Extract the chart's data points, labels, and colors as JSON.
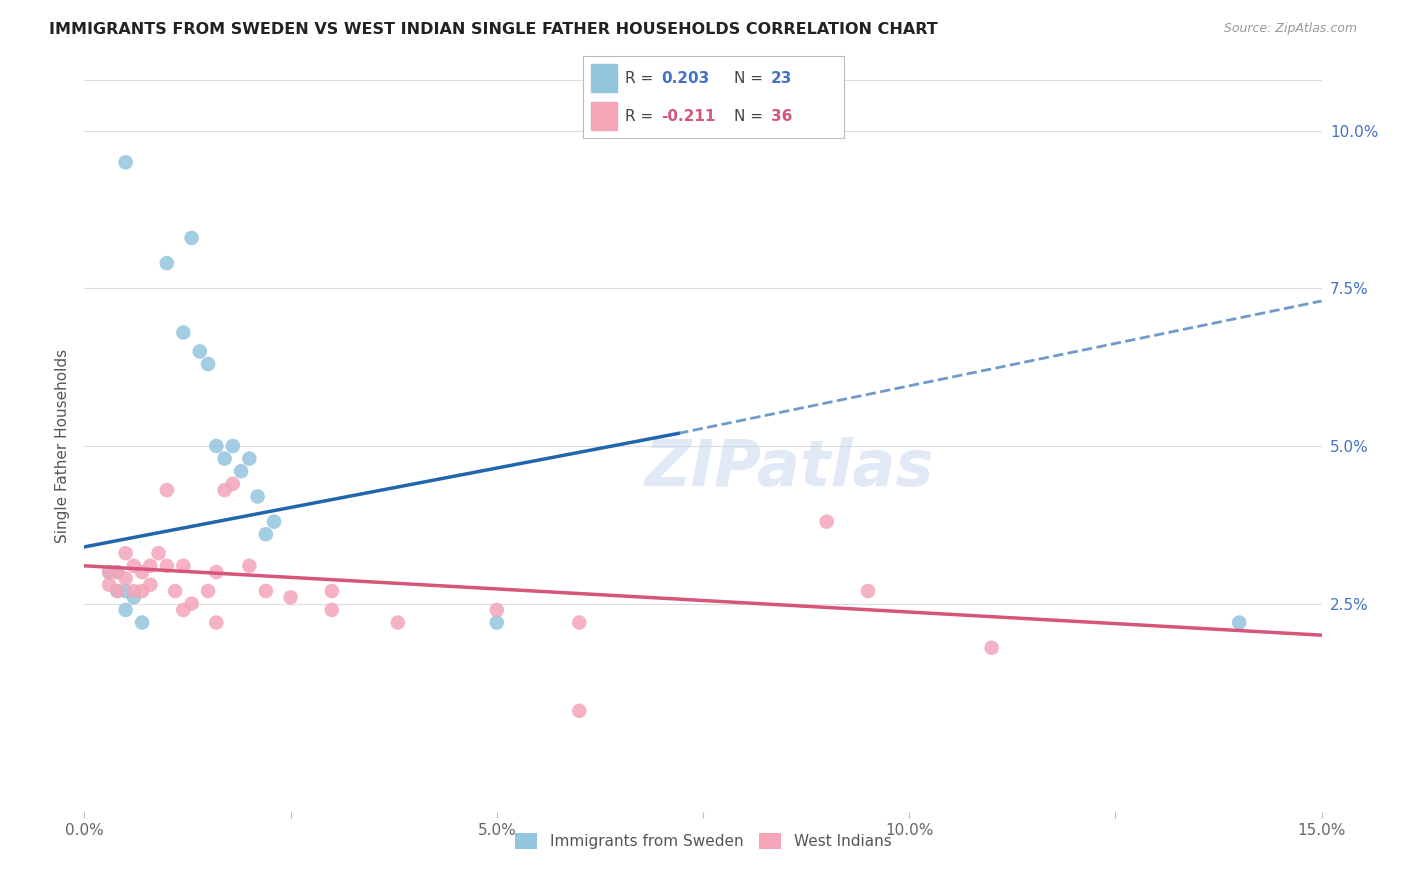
{
  "title": "IMMIGRANTS FROM SWEDEN VS WEST INDIAN SINGLE FATHER HOUSEHOLDS CORRELATION CHART",
  "source": "Source: ZipAtlas.com",
  "ylabel": "Single Father Households",
  "xlim": [
    0.0,
    0.15
  ],
  "ylim": [
    -0.008,
    0.108
  ],
  "blue_color": "#92c5de",
  "pink_color": "#f4a5b8",
  "blue_line_color": "#2166ac",
  "pink_line_color": "#d6567a",
  "blue_line": [
    [
      0.0,
      0.034
    ],
    [
      0.072,
      0.052
    ]
  ],
  "blue_dash_line": [
    [
      0.072,
      0.052
    ],
    [
      0.15,
      0.073
    ]
  ],
  "pink_line": [
    [
      0.0,
      0.031
    ],
    [
      0.15,
      0.02
    ]
  ],
  "blue_scatter": [
    [
      0.005,
      0.095
    ],
    [
      0.01,
      0.079
    ],
    [
      0.012,
      0.068
    ],
    [
      0.013,
      0.083
    ],
    [
      0.014,
      0.065
    ],
    [
      0.015,
      0.063
    ],
    [
      0.016,
      0.05
    ],
    [
      0.017,
      0.048
    ],
    [
      0.018,
      0.05
    ],
    [
      0.019,
      0.046
    ],
    [
      0.02,
      0.048
    ],
    [
      0.021,
      0.042
    ],
    [
      0.022,
      0.036
    ],
    [
      0.023,
      0.038
    ],
    [
      0.003,
      0.03
    ],
    [
      0.004,
      0.03
    ],
    [
      0.004,
      0.027
    ],
    [
      0.005,
      0.027
    ],
    [
      0.005,
      0.024
    ],
    [
      0.006,
      0.026
    ],
    [
      0.007,
      0.022
    ],
    [
      0.05,
      0.022
    ],
    [
      0.14,
      0.022
    ]
  ],
  "pink_scatter": [
    [
      0.003,
      0.03
    ],
    [
      0.003,
      0.028
    ],
    [
      0.004,
      0.03
    ],
    [
      0.004,
      0.027
    ],
    [
      0.005,
      0.033
    ],
    [
      0.005,
      0.029
    ],
    [
      0.006,
      0.031
    ],
    [
      0.006,
      0.027
    ],
    [
      0.007,
      0.03
    ],
    [
      0.007,
      0.027
    ],
    [
      0.008,
      0.031
    ],
    [
      0.008,
      0.028
    ],
    [
      0.009,
      0.033
    ],
    [
      0.01,
      0.043
    ],
    [
      0.01,
      0.031
    ],
    [
      0.011,
      0.027
    ],
    [
      0.012,
      0.031
    ],
    [
      0.012,
      0.024
    ],
    [
      0.013,
      0.025
    ],
    [
      0.015,
      0.027
    ],
    [
      0.016,
      0.03
    ],
    [
      0.016,
      0.022
    ],
    [
      0.017,
      0.043
    ],
    [
      0.018,
      0.044
    ],
    [
      0.02,
      0.031
    ],
    [
      0.022,
      0.027
    ],
    [
      0.025,
      0.026
    ],
    [
      0.03,
      0.024
    ],
    [
      0.03,
      0.027
    ],
    [
      0.038,
      0.022
    ],
    [
      0.05,
      0.024
    ],
    [
      0.06,
      0.022
    ],
    [
      0.09,
      0.038
    ],
    [
      0.095,
      0.027
    ],
    [
      0.06,
      0.008
    ],
    [
      0.11,
      0.018
    ]
  ],
  "watermark_text": "ZIPatlas",
  "background_color": "#ffffff",
  "grid_color": "#dddddd",
  "right_tick_color": "#4472c4",
  "xtick_labels": [
    "0.0%",
    "",
    "5.0%",
    "",
    "10.0%",
    "",
    "15.0%"
  ],
  "xtick_values": [
    0.0,
    0.025,
    0.05,
    0.075,
    0.1,
    0.125,
    0.15
  ],
  "ytick_values": [
    0.025,
    0.05,
    0.075,
    0.1
  ],
  "ytick_labels": [
    "2.5%",
    "5.0%",
    "7.5%",
    "10.0%"
  ]
}
